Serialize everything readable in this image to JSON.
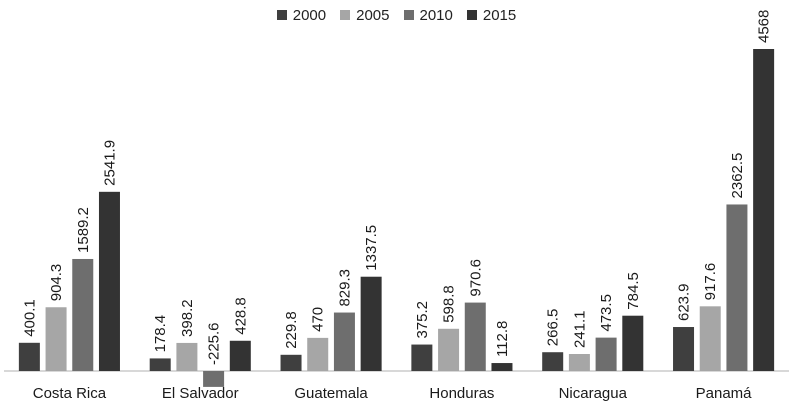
{
  "chart_data": {
    "type": "bar",
    "categories": [
      "Costa Rica",
      "El Salvador",
      "Guatemala",
      "Honduras",
      "Nicaragua",
      "Panamá"
    ],
    "series": [
      {
        "name": "2000",
        "color": "#3f3f3f",
        "values": [
          400.1,
          178.4,
          229.8,
          375.2,
          266.5,
          623.9
        ],
        "labels": [
          "400.1",
          "178.4",
          "229.8",
          "375.2",
          "266.5",
          "623.9"
        ]
      },
      {
        "name": "2005",
        "color": "#a6a6a6",
        "values": [
          904.3,
          398.2,
          470,
          598.8,
          241.1,
          917.6
        ],
        "labels": [
          "904.3",
          "398.2",
          "470",
          "598.8",
          "241.1",
          "917.6"
        ]
      },
      {
        "name": "2010",
        "color": "#6e6e6e",
        "values": [
          1589.2,
          -225.6,
          829.3,
          970.6,
          473.5,
          2362.5
        ],
        "labels": [
          "1589.2",
          "-225.6",
          "829.3",
          "970.6",
          "473.5",
          "2362.5"
        ]
      },
      {
        "name": "2015",
        "color": "#333333",
        "values": [
          2541.9,
          428.8,
          1337.5,
          112.8,
          784.5,
          4568
        ],
        "labels": [
          "2541.9",
          "428.8",
          "1337.5",
          "112.8",
          "784.5",
          "4568"
        ]
      }
    ],
    "ylim": [
      -225.6,
      4568
    ],
    "legend": "top-center",
    "grid": false
  }
}
